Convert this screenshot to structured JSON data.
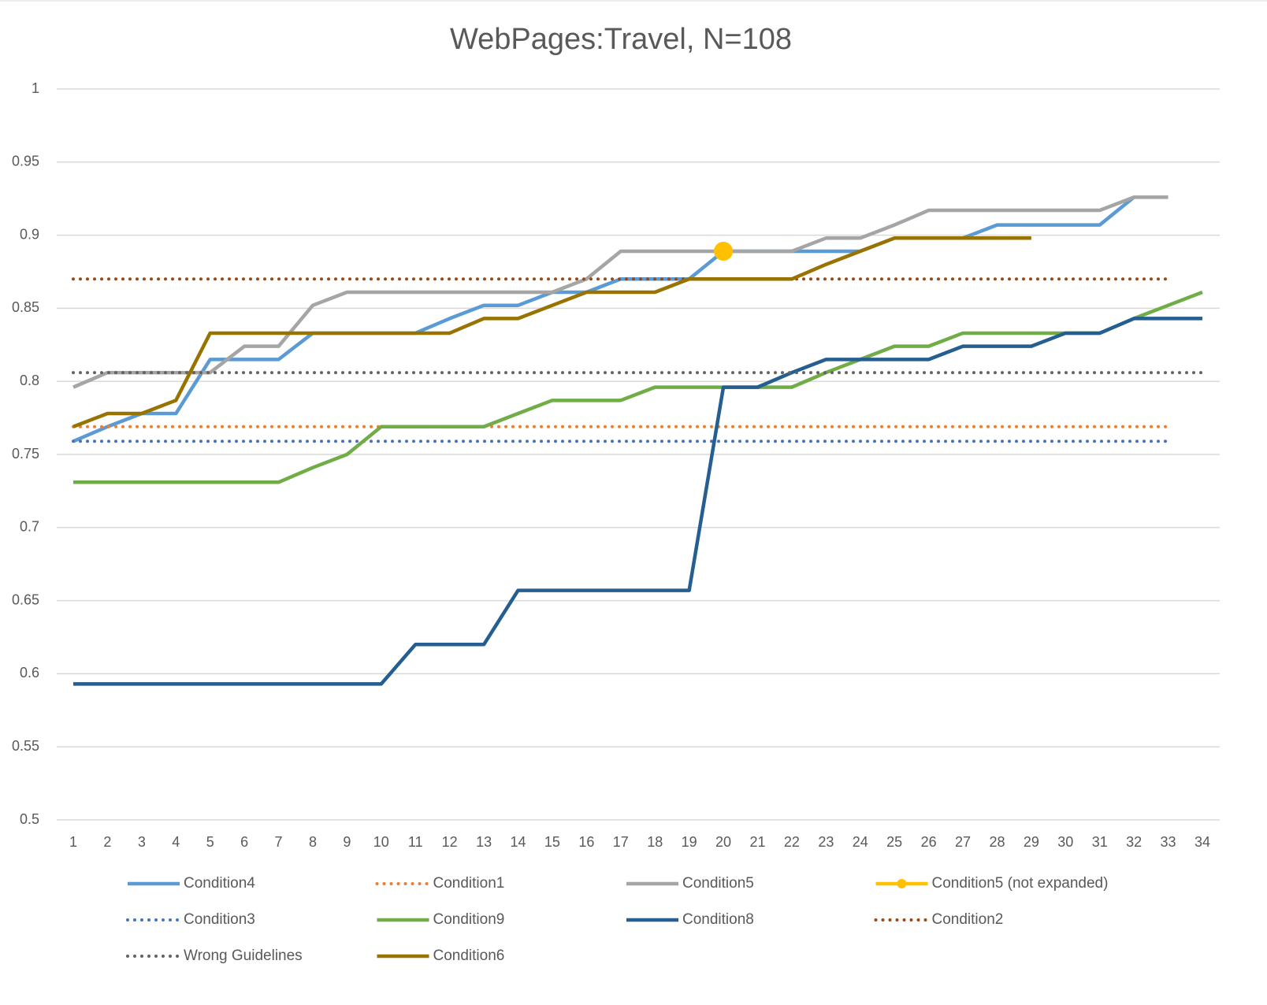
{
  "chart_data": {
    "type": "line",
    "title": "WebPages:Travel, N=108",
    "categories": [
      "1",
      "2",
      "3",
      "4",
      "5",
      "6",
      "7",
      "8",
      "9",
      "10",
      "11",
      "12",
      "13",
      "14",
      "15",
      "16",
      "17",
      "18",
      "19",
      "20",
      "21",
      "22",
      "23",
      "24",
      "25",
      "26",
      "27",
      "28",
      "29",
      "30",
      "31",
      "32",
      "33",
      "34"
    ],
    "ylim": [
      0.5,
      1
    ],
    "yticks": [
      0.5,
      0.55,
      0.6,
      0.65,
      0.7,
      0.75,
      0.8,
      0.85,
      0.9,
      0.95,
      1
    ],
    "grid": true,
    "legend": "bottom",
    "series": [
      {
        "name": "Condition4",
        "color": "#5b9bd5",
        "dash": "solid",
        "values": [
          0.759,
          0.769,
          0.778,
          0.778,
          0.815,
          0.815,
          0.815,
          0.833,
          0.833,
          0.833,
          0.833,
          0.843,
          0.852,
          0.852,
          0.861,
          0.861,
          0.87,
          0.87,
          0.87,
          0.889,
          0.889,
          0.889,
          0.889,
          0.889,
          0.898,
          0.898,
          0.898,
          0.907,
          0.907,
          0.907,
          0.907,
          0.926,
          null,
          null
        ]
      },
      {
        "name": "Condition1",
        "color": "#ed7d31",
        "dash": "dotted",
        "values": [
          0.769,
          0.769,
          0.769,
          0.769,
          0.769,
          0.769,
          0.769,
          0.769,
          0.769,
          0.769,
          0.769,
          0.769,
          0.769,
          0.769,
          0.769,
          0.769,
          0.769,
          0.769,
          0.769,
          0.769,
          0.769,
          0.769,
          0.769,
          0.769,
          0.769,
          0.769,
          0.769,
          0.769,
          0.769,
          0.769,
          0.769,
          0.769,
          0.769,
          null
        ]
      },
      {
        "name": "Condition5",
        "color": "#a5a5a5",
        "dash": "solid",
        "values": [
          0.796,
          0.806,
          0.806,
          0.806,
          0.806,
          0.824,
          0.824,
          0.852,
          0.861,
          0.861,
          0.861,
          0.861,
          0.861,
          0.861,
          0.861,
          0.87,
          0.889,
          0.889,
          0.889,
          0.889,
          0.889,
          0.889,
          0.898,
          0.898,
          0.907,
          0.917,
          0.917,
          0.917,
          0.917,
          0.917,
          0.917,
          0.926,
          0.926,
          null
        ]
      },
      {
        "name": "Condition5 (not expanded)",
        "color": "#ffc000",
        "dash": "solid",
        "marker": true,
        "values": [
          null,
          null,
          null,
          null,
          null,
          null,
          null,
          null,
          null,
          null,
          null,
          null,
          null,
          null,
          null,
          null,
          null,
          null,
          null,
          0.889,
          null,
          null,
          null,
          null,
          null,
          null,
          null,
          null,
          null,
          null,
          null,
          null,
          null,
          null
        ]
      },
      {
        "name": "Condition3",
        "color": "#4472c4",
        "dash": "dotted",
        "values": [
          0.759,
          0.759,
          0.759,
          0.759,
          0.759,
          0.759,
          0.759,
          0.759,
          0.759,
          0.759,
          0.759,
          0.759,
          0.759,
          0.759,
          0.759,
          0.759,
          0.759,
          0.759,
          0.759,
          0.759,
          0.759,
          0.759,
          0.759,
          0.759,
          0.759,
          0.759,
          0.759,
          0.759,
          0.759,
          0.759,
          0.759,
          0.759,
          0.759,
          null
        ]
      },
      {
        "name": "Condition9",
        "color": "#70ad47",
        "dash": "solid",
        "values": [
          0.731,
          0.731,
          0.731,
          0.731,
          0.731,
          0.731,
          0.731,
          0.741,
          0.75,
          0.769,
          0.769,
          0.769,
          0.769,
          0.778,
          0.787,
          0.787,
          0.787,
          0.796,
          0.796,
          0.796,
          0.796,
          0.796,
          0.806,
          0.815,
          0.824,
          0.824,
          0.833,
          0.833,
          0.833,
          0.833,
          0.833,
          0.843,
          0.852,
          0.861
        ]
      },
      {
        "name": "Condition8",
        "color": "#255e91",
        "dash": "solid",
        "values": [
          0.593,
          0.593,
          0.593,
          0.593,
          0.593,
          0.593,
          0.593,
          0.593,
          0.593,
          0.593,
          0.62,
          0.62,
          0.62,
          0.657,
          0.657,
          0.657,
          0.657,
          0.657,
          0.657,
          0.796,
          0.796,
          0.806,
          0.815,
          0.815,
          0.815,
          0.815,
          0.824,
          0.824,
          0.824,
          0.833,
          0.833,
          0.843,
          0.843,
          0.843
        ]
      },
      {
        "name": "Condition2",
        "color": "#9e480e",
        "dash": "dotted",
        "values": [
          0.87,
          0.87,
          0.87,
          0.87,
          0.87,
          0.87,
          0.87,
          0.87,
          0.87,
          0.87,
          0.87,
          0.87,
          0.87,
          0.87,
          0.87,
          0.87,
          0.87,
          0.87,
          0.87,
          0.87,
          0.87,
          0.87,
          0.87,
          0.87,
          0.87,
          0.87,
          0.87,
          0.87,
          0.87,
          0.87,
          0.87,
          0.87,
          0.87,
          null
        ]
      },
      {
        "name": "Wrong Guidelines",
        "color": "#636363",
        "dash": "dotted",
        "values": [
          0.806,
          0.806,
          0.806,
          0.806,
          0.806,
          0.806,
          0.806,
          0.806,
          0.806,
          0.806,
          0.806,
          0.806,
          0.806,
          0.806,
          0.806,
          0.806,
          0.806,
          0.806,
          0.806,
          0.806,
          0.806,
          0.806,
          0.806,
          0.806,
          0.806,
          0.806,
          0.806,
          0.806,
          0.806,
          0.806,
          0.806,
          0.806,
          0.806,
          0.806
        ]
      },
      {
        "name": "Condition6",
        "color": "#997300",
        "dash": "solid",
        "values": [
          0.769,
          0.778,
          0.778,
          0.787,
          0.833,
          0.833,
          0.833,
          0.833,
          0.833,
          0.833,
          0.833,
          0.833,
          0.843,
          0.843,
          0.852,
          0.861,
          0.861,
          0.861,
          0.87,
          0.87,
          0.87,
          0.87,
          0.88,
          0.889,
          0.898,
          0.898,
          0.898,
          0.898,
          0.898,
          null,
          null,
          null,
          null,
          null
        ]
      }
    ]
  }
}
